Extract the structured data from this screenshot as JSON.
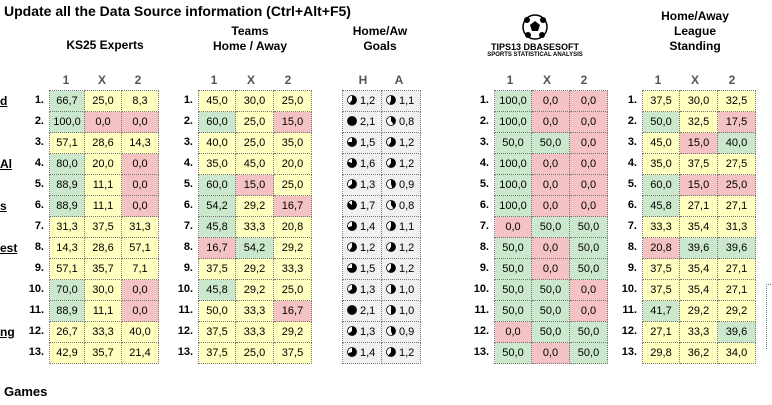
{
  "title": "Update all the Data Source information (Ctrl+Alt+F5)",
  "side_labels": [
    "d",
    "Al",
    "s",
    "est",
    "ng"
  ],
  "footer": "Games",
  "row_numbers": [
    "1.",
    "2.",
    "3.",
    "4.",
    "5.",
    "6.",
    "7.",
    "8.",
    "9.",
    "10.",
    "11.",
    "12.",
    "13."
  ],
  "sections": {
    "experts": {
      "header": "KS25 Experts",
      "cols": [
        "1",
        "X",
        "2"
      ],
      "rows": [
        [
          "66,7",
          "25,0",
          "8,3"
        ],
        [
          "100,0",
          "0,0",
          "0,0"
        ],
        [
          "57,1",
          "28,6",
          "14,3"
        ],
        [
          "80,0",
          "20,0",
          "0,0"
        ],
        [
          "88,9",
          "11,1",
          "0,0"
        ],
        [
          "88,9",
          "11,1",
          "0,0"
        ],
        [
          "31,3",
          "37,5",
          "31,3"
        ],
        [
          "14,3",
          "28,6",
          "57,1"
        ],
        [
          "57,1",
          "35,7",
          "7,1"
        ],
        [
          "70,0",
          "30,0",
          "0,0"
        ],
        [
          "88,9",
          "11,1",
          "0,0"
        ],
        [
          "26,7",
          "33,3",
          "40,0"
        ],
        [
          "42,9",
          "35,7",
          "21,4"
        ]
      ],
      "colors": [
        [
          "g",
          "y",
          "y"
        ],
        [
          "g",
          "r",
          "r"
        ],
        [
          "y",
          "y",
          "y"
        ],
        [
          "g",
          "y",
          "r"
        ],
        [
          "g",
          "y",
          "r"
        ],
        [
          "g",
          "y",
          "r"
        ],
        [
          "y",
          "y",
          "y"
        ],
        [
          "y",
          "y",
          "y"
        ],
        [
          "y",
          "y",
          "y"
        ],
        [
          "g",
          "y",
          "r"
        ],
        [
          "g",
          "y",
          "r"
        ],
        [
          "y",
          "y",
          "y"
        ],
        [
          "y",
          "y",
          "y"
        ]
      ]
    },
    "teams": {
      "header_line1": "Teams",
      "header_line2": "Home / Away",
      "cols": [
        "1",
        "X",
        "2"
      ],
      "rows": [
        [
          "45,0",
          "30,0",
          "25,0"
        ],
        [
          "60,0",
          "25,0",
          "15,0"
        ],
        [
          "40,0",
          "25,0",
          "35,0"
        ],
        [
          "35,0",
          "45,0",
          "20,0"
        ],
        [
          "60,0",
          "15,0",
          "25,0"
        ],
        [
          "54,2",
          "29,2",
          "16,7"
        ],
        [
          "45,8",
          "33,3",
          "20,8"
        ],
        [
          "16,7",
          "54,2",
          "29,2"
        ],
        [
          "37,5",
          "29,2",
          "33,3"
        ],
        [
          "45,8",
          "29,2",
          "25,0"
        ],
        [
          "50,0",
          "33,3",
          "16,7"
        ],
        [
          "37,5",
          "33,3",
          "29,2"
        ],
        [
          "37,5",
          "25,0",
          "37,5"
        ]
      ],
      "colors": [
        [
          "y",
          "y",
          "y"
        ],
        [
          "g",
          "y",
          "r"
        ],
        [
          "y",
          "y",
          "y"
        ],
        [
          "y",
          "y",
          "y"
        ],
        [
          "g",
          "r",
          "y"
        ],
        [
          "g",
          "y",
          "r"
        ],
        [
          "g",
          "y",
          "y"
        ],
        [
          "r",
          "g",
          "y"
        ],
        [
          "y",
          "y",
          "y"
        ],
        [
          "g",
          "y",
          "y"
        ],
        [
          "y",
          "y",
          "r"
        ],
        [
          "y",
          "y",
          "y"
        ],
        [
          "y",
          "y",
          "y"
        ]
      ]
    },
    "goals": {
      "header_line1": "Home/Aw",
      "header_line2": "Goals",
      "cols": [
        "H",
        "A"
      ],
      "rows": [
        [
          "1,2",
          "1,1"
        ],
        [
          "2,1",
          "0,8"
        ],
        [
          "1,5",
          "1,2"
        ],
        [
          "1,6",
          "1,2"
        ],
        [
          "1,3",
          "0,9"
        ],
        [
          "1,7",
          "0,8"
        ],
        [
          "1,4",
          "1,1"
        ],
        [
          "1,2",
          "1,2"
        ],
        [
          "1,5",
          "1,2"
        ],
        [
          "1,3",
          "1,0"
        ],
        [
          "2,1",
          "1,0"
        ],
        [
          "1,3",
          "0,9"
        ],
        [
          "1,4",
          "1,2"
        ]
      ]
    },
    "tips": {
      "logo_text": "TIPS13 DBASESOFT",
      "logo_sub": "SPORTS STATISTICAL ANALYSIS",
      "cols": [
        "1",
        "X",
        "2"
      ],
      "rows": [
        [
          "100,0",
          "0,0",
          "0,0"
        ],
        [
          "100,0",
          "0,0",
          "0,0"
        ],
        [
          "50,0",
          "50,0",
          "0,0"
        ],
        [
          "100,0",
          "0,0",
          "0,0"
        ],
        [
          "100,0",
          "0,0",
          "0,0"
        ],
        [
          "100,0",
          "0,0",
          "0,0"
        ],
        [
          "0,0",
          "50,0",
          "50,0"
        ],
        [
          "50,0",
          "0,0",
          "50,0"
        ],
        [
          "50,0",
          "0,0",
          "50,0"
        ],
        [
          "50,0",
          "50,0",
          "0,0"
        ],
        [
          "50,0",
          "50,0",
          "0,0"
        ],
        [
          "0,0",
          "50,0",
          "50,0"
        ],
        [
          "50,0",
          "0,0",
          "50,0"
        ]
      ],
      "colors": [
        [
          "g",
          "r",
          "r"
        ],
        [
          "g",
          "r",
          "r"
        ],
        [
          "g",
          "g",
          "r"
        ],
        [
          "g",
          "r",
          "r"
        ],
        [
          "g",
          "r",
          "r"
        ],
        [
          "g",
          "r",
          "r"
        ],
        [
          "r",
          "g",
          "g"
        ],
        [
          "g",
          "r",
          "g"
        ],
        [
          "g",
          "r",
          "g"
        ],
        [
          "g",
          "g",
          "r"
        ],
        [
          "g",
          "g",
          "r"
        ],
        [
          "r",
          "g",
          "g"
        ],
        [
          "g",
          "r",
          "g"
        ]
      ]
    },
    "league": {
      "header_line1": "Home/Away",
      "header_line2": "League",
      "header_line3": "Standing",
      "cols": [
        "1",
        "X",
        "2"
      ],
      "rows": [
        [
          "37,5",
          "30,0",
          "32,5"
        ],
        [
          "50,0",
          "32,5",
          "17,5"
        ],
        [
          "45,0",
          "15,0",
          "40,0"
        ],
        [
          "35,0",
          "37,5",
          "27,5"
        ],
        [
          "60,0",
          "15,0",
          "25,0"
        ],
        [
          "45,8",
          "27,1",
          "27,1"
        ],
        [
          "33,3",
          "35,4",
          "31,3"
        ],
        [
          "20,8",
          "39,6",
          "39,6"
        ],
        [
          "37,5",
          "35,4",
          "27,1"
        ],
        [
          "37,5",
          "35,4",
          "27,1"
        ],
        [
          "41,7",
          "29,2",
          "29,2"
        ],
        [
          "27,1",
          "33,3",
          "39,6"
        ],
        [
          "29,8",
          "36,2",
          "34,0"
        ]
      ],
      "colors": [
        [
          "y",
          "y",
          "y"
        ],
        [
          "g",
          "y",
          "r"
        ],
        [
          "y",
          "r",
          "g"
        ],
        [
          "y",
          "y",
          "y"
        ],
        [
          "g",
          "r",
          "r"
        ],
        [
          "g",
          "y",
          "y"
        ],
        [
          "y",
          "y",
          "y"
        ],
        [
          "r",
          "g",
          "g"
        ],
        [
          "y",
          "y",
          "y"
        ],
        [
          "y",
          "y",
          "y"
        ],
        [
          "g",
          "y",
          "y"
        ],
        [
          "y",
          "y",
          "g"
        ],
        [
          "y",
          "y",
          "y"
        ]
      ]
    }
  }
}
